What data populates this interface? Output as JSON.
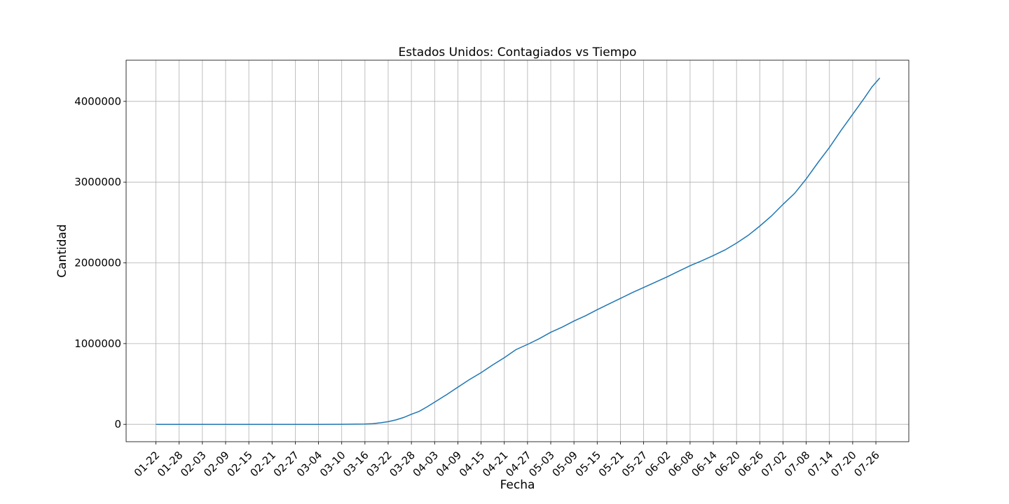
{
  "chart_data": {
    "type": "line",
    "title": "Estados Unidos: Contagiados vs Tiempo",
    "xlabel": "Fecha",
    "ylabel": "Cantidad",
    "x_start": "2020-01-22",
    "x_tick_labels": [
      "01-22",
      "01-28",
      "02-03",
      "02-09",
      "02-15",
      "02-21",
      "02-27",
      "03-04",
      "03-10",
      "03-16",
      "03-22",
      "03-28",
      "04-03",
      "04-09",
      "04-15",
      "04-21",
      "04-27",
      "05-03",
      "05-09",
      "05-15",
      "05-21",
      "05-27",
      "06-02",
      "06-08",
      "06-14",
      "06-20",
      "06-26",
      "07-02",
      "07-08",
      "07-14",
      "07-20",
      "07-26"
    ],
    "y_ticks": [
      0,
      1000000,
      2000000,
      3000000,
      4000000
    ],
    "y_tick_labels": [
      "0",
      "1000000",
      "2000000",
      "3000000",
      "4000000"
    ],
    "ylim": [
      -215000,
      4510000
    ],
    "grid": true,
    "line_color": "#1f77b4",
    "series": [
      {
        "x": [
          "01-22",
          "01-28",
          "02-03",
          "02-09",
          "02-15",
          "02-21",
          "02-27",
          "03-04",
          "03-10",
          "03-12",
          "03-14",
          "03-16",
          "03-18",
          "03-20",
          "03-22",
          "03-24",
          "03-26",
          "03-28",
          "03-30",
          "04-01",
          "04-03",
          "04-06",
          "04-09",
          "04-12",
          "04-15",
          "04-18",
          "04-21",
          "04-24",
          "04-27",
          "04-30",
          "05-03",
          "05-06",
          "05-09",
          "05-12",
          "05-15",
          "05-18",
          "05-21",
          "05-24",
          "05-27",
          "05-30",
          "06-02",
          "06-05",
          "06-08",
          "06-11",
          "06-14",
          "06-17",
          "06-20",
          "06-23",
          "06-26",
          "06-29",
          "07-02",
          "07-05",
          "07-08",
          "07-11",
          "07-14",
          "07-17",
          "07-20",
          "07-23",
          "07-25",
          "07-27"
        ],
        "values": [
          1,
          5,
          11,
          12,
          15,
          15,
          60,
          150,
          1000,
          1700,
          2900,
          4600,
          9000,
          19000,
          33000,
          55000,
          85000,
          125000,
          160000,
          215000,
          275000,
          365000,
          460000,
          555000,
          640000,
          735000,
          825000,
          925000,
          990000,
          1060000,
          1140000,
          1205000,
          1280000,
          1345000,
          1420000,
          1490000,
          1560000,
          1630000,
          1695000,
          1760000,
          1825000,
          1895000,
          1965000,
          2025000,
          2090000,
          2160000,
          2245000,
          2340000,
          2455000,
          2580000,
          2725000,
          2860000,
          3040000,
          3240000,
          3430000,
          3640000,
          3840000,
          4040000,
          4180000,
          4290000
        ]
      }
    ]
  }
}
